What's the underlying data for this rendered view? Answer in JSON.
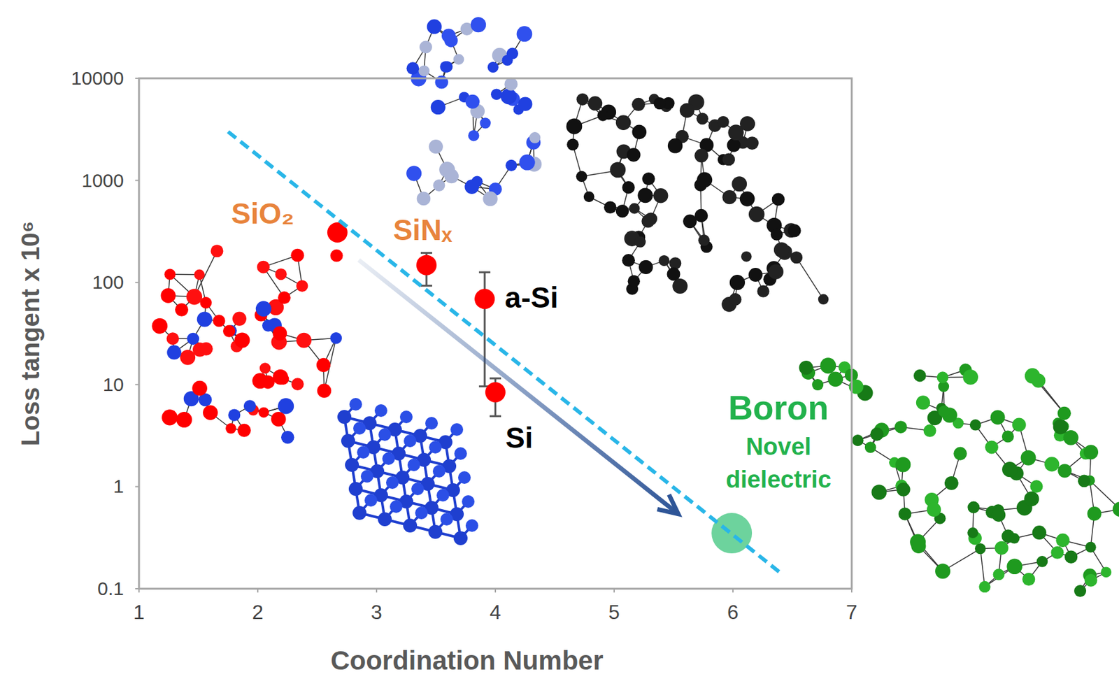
{
  "chart_data": {
    "type": "scatter",
    "x_label": "Coordination Number",
    "y_label": "Loss tangent x 10⁶",
    "log": "y",
    "xlim": [
      1,
      7
    ],
    "ylim": [
      0.1,
      10000
    ],
    "xticks": [
      1,
      2,
      3,
      4,
      5,
      6,
      7
    ],
    "yticks": [
      0.1,
      1,
      10,
      100,
      1000,
      10000
    ],
    "grid": false,
    "series": [
      {
        "type": "scatter",
        "color": "#ff0000",
        "marker": "circle",
        "x": [
          2.67,
          3.42,
          3.91,
          4.0
        ],
        "values": [
          309,
          148,
          69,
          8.4
        ],
        "error_low": [
          null,
          93,
          9.6,
          4.9
        ],
        "error_high": [
          null,
          195,
          126,
          11.5
        ],
        "labels": [
          "SiO₂",
          "SiNₓ",
          "a-Si",
          "Si"
        ]
      },
      {
        "type": "scatter",
        "color": "#3cc47c",
        "marker": "large-circle",
        "x": [
          5.99
        ],
        "values": [
          0.35
        ],
        "labels": [
          "Boron"
        ]
      },
      {
        "type": "line",
        "color": "#29b6e8",
        "line_style": "dashed",
        "x": [
          1.75,
          6.41
        ],
        "values": [
          3000,
          0.14
        ]
      },
      {
        "type": "arrow",
        "color": "#2e5597",
        "x": [
          2.85,
          5.54
        ],
        "values": [
          166,
          0.54
        ]
      }
    ],
    "annotations": [
      {
        "text": "Novel dielectric",
        "color": "#22b24c"
      }
    ]
  }
}
